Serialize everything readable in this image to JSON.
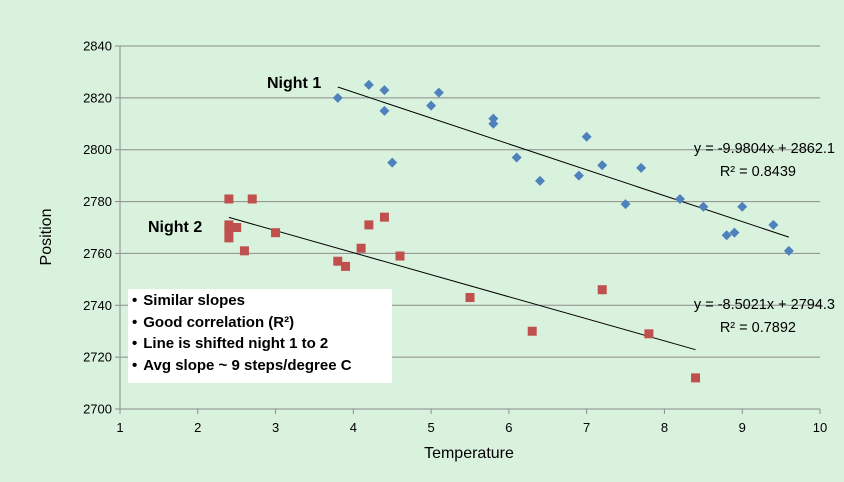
{
  "chart_data": {
    "type": "scatter",
    "xlabel": "Temperature",
    "ylabel": "Position",
    "xlim": [
      1,
      10
    ],
    "ylim": [
      2700,
      2840
    ],
    "x_ticks": [
      1,
      2,
      3,
      4,
      5,
      6,
      7,
      8,
      9,
      10
    ],
    "y_ticks": [
      2700,
      2720,
      2740,
      2760,
      2780,
      2800,
      2820,
      2840
    ],
    "grid": "horizontal",
    "legend": "none",
    "series": [
      {
        "name": "Night 1",
        "marker": "diamond",
        "color": "#4f81bd",
        "points": [
          [
            3.8,
            2820
          ],
          [
            4.2,
            2825
          ],
          [
            4.4,
            2823
          ],
          [
            4.4,
            2815
          ],
          [
            4.5,
            2795
          ],
          [
            5.0,
            2817
          ],
          [
            5.1,
            2822
          ],
          [
            5.8,
            2812
          ],
          [
            5.8,
            2810
          ],
          [
            6.1,
            2797
          ],
          [
            6.4,
            2788
          ],
          [
            6.9,
            2790
          ],
          [
            7.0,
            2805
          ],
          [
            7.2,
            2794
          ],
          [
            7.5,
            2779
          ],
          [
            7.7,
            2793
          ],
          [
            8.2,
            2781
          ],
          [
            8.5,
            2778
          ],
          [
            8.8,
            2767
          ],
          [
            8.9,
            2768
          ],
          [
            9.0,
            2778
          ],
          [
            9.4,
            2771
          ],
          [
            9.6,
            2761
          ]
        ],
        "trendline": {
          "slope": -9.9804,
          "intercept": 2862.1,
          "x_range": [
            3.8,
            9.6
          ]
        },
        "equation_label": "y = -9.9804x + 2862.1",
        "r2_label": "R² = 0.8439"
      },
      {
        "name": "Night 2",
        "marker": "square",
        "color": "#c0504d",
        "points": [
          [
            2.4,
            2781
          ],
          [
            2.4,
            2771
          ],
          [
            2.4,
            2769
          ],
          [
            2.4,
            2766
          ],
          [
            2.5,
            2770
          ],
          [
            2.6,
            2761
          ],
          [
            2.7,
            2781
          ],
          [
            3.0,
            2768
          ],
          [
            3.8,
            2757
          ],
          [
            3.9,
            2755
          ],
          [
            4.1,
            2762
          ],
          [
            4.2,
            2771
          ],
          [
            4.4,
            2774
          ],
          [
            4.6,
            2759
          ],
          [
            5.5,
            2743
          ],
          [
            6.3,
            2730
          ],
          [
            7.2,
            2746
          ],
          [
            7.8,
            2729
          ],
          [
            8.4,
            2712
          ]
        ],
        "trendline": {
          "slope": -8.5021,
          "intercept": 2794.3,
          "x_range": [
            2.4,
            8.4
          ]
        },
        "equation_label": "y = -8.5021x + 2794.3",
        "r2_label": "R² = 0.7892"
      }
    ],
    "annotations": {
      "night1_label": "Night 1",
      "night2_label": "Night 2",
      "bullets": [
        "Similar slopes",
        "Good correlation (R²)",
        "Line is shifted night 1 to 2",
        "Avg slope ~ 9 steps/degree C"
      ]
    }
  }
}
